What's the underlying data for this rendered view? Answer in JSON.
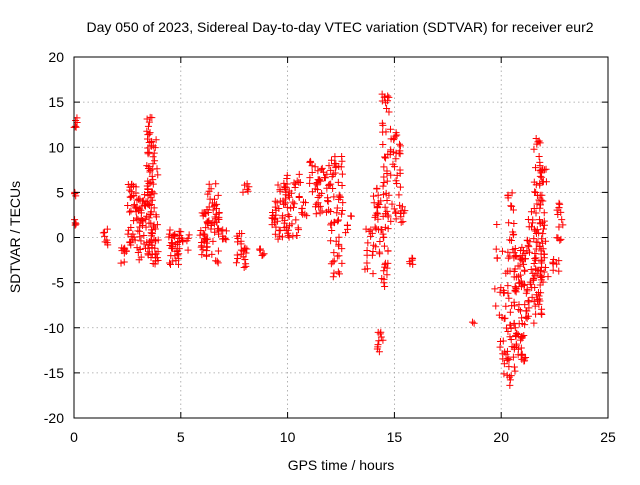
{
  "chart_data": {
    "type": "scatter",
    "title": "Day 050 of 2023, Sidereal Day-to-day VTEC variation (SDTVAR) for receiver eur2",
    "xlabel": "GPS time / hours",
    "ylabel": "SDTVAR / TECUs",
    "xlim": [
      0,
      25
    ],
    "ylim": [
      -20,
      20
    ],
    "xticks": [
      0,
      5,
      10,
      15,
      20,
      25
    ],
    "yticks": [
      -20,
      -15,
      -10,
      -5,
      0,
      5,
      10,
      15,
      20
    ],
    "grid": true,
    "marker": "+",
    "color": "#ff0000",
    "segments": [
      {
        "x0": 0.0,
        "x1": 0.1,
        "lo": 1.0,
        "hi": 2.0,
        "n": 4
      },
      {
        "x0": 0.0,
        "x1": 0.1,
        "lo": 4.5,
        "hi": 5.3,
        "n": 4
      },
      {
        "x0": 0.0,
        "x1": 0.15,
        "lo": 12.0,
        "hi": 13.5,
        "n": 6
      },
      {
        "x0": 1.35,
        "x1": 1.6,
        "lo": -1.0,
        "hi": 1.0,
        "n": 8
      },
      {
        "x0": 2.2,
        "x1": 2.6,
        "lo": -3.0,
        "hi": -1.0,
        "n": 10
      },
      {
        "x0": 2.5,
        "x1": 3.0,
        "lo": -2.0,
        "hi": 6.0,
        "n": 40
      },
      {
        "x0": 3.0,
        "x1": 3.4,
        "lo": -2.5,
        "hi": 5.0,
        "n": 35
      },
      {
        "x0": 3.4,
        "x1": 3.7,
        "lo": -2.0,
        "hi": 13.5,
        "n": 60
      },
      {
        "x0": 3.6,
        "x1": 3.95,
        "lo": -3.0,
        "hi": 11.0,
        "n": 45
      },
      {
        "x0": 4.4,
        "x1": 5.0,
        "lo": -3.0,
        "hi": 1.0,
        "n": 35
      },
      {
        "x0": 5.0,
        "x1": 5.4,
        "lo": -1.5,
        "hi": 0.5,
        "n": 8
      },
      {
        "x0": 5.9,
        "x1": 6.3,
        "lo": -2.5,
        "hi": 3.0,
        "n": 30
      },
      {
        "x0": 6.2,
        "x1": 6.8,
        "lo": -3.0,
        "hi": 6.0,
        "n": 45
      },
      {
        "x0": 6.8,
        "x1": 7.2,
        "lo": -1.0,
        "hi": 1.0,
        "n": 8
      },
      {
        "x0": 7.6,
        "x1": 8.1,
        "lo": -3.5,
        "hi": 0.5,
        "n": 22
      },
      {
        "x0": 7.9,
        "x1": 8.2,
        "lo": 4.5,
        "hi": 6.0,
        "n": 6
      },
      {
        "x0": 8.6,
        "x1": 8.9,
        "lo": -2.0,
        "hi": -1.0,
        "n": 6
      },
      {
        "x0": 9.2,
        "x1": 9.9,
        "lo": -0.5,
        "hi": 6.5,
        "n": 40
      },
      {
        "x0": 9.9,
        "x1": 10.6,
        "lo": 0.0,
        "hi": 7.0,
        "n": 40
      },
      {
        "x0": 10.6,
        "x1": 10.9,
        "lo": 2.0,
        "hi": 4.0,
        "n": 8
      },
      {
        "x0": 11.0,
        "x1": 11.3,
        "lo": 5.0,
        "hi": 8.5,
        "n": 10
      },
      {
        "x0": 11.3,
        "x1": 12.0,
        "lo": 2.5,
        "hi": 8.0,
        "n": 35
      },
      {
        "x0": 12.0,
        "x1": 12.6,
        "lo": -4.5,
        "hi": 9.5,
        "n": 55
      },
      {
        "x0": 12.7,
        "x1": 13.0,
        "lo": 0.5,
        "hi": 2.5,
        "n": 6
      },
      {
        "x0": 13.6,
        "x1": 14.0,
        "lo": -4.0,
        "hi": 1.0,
        "n": 14
      },
      {
        "x0": 14.0,
        "x1": 14.4,
        "lo": -2.0,
        "hi": 6.0,
        "n": 25
      },
      {
        "x0": 14.2,
        "x1": 14.5,
        "lo": -13.0,
        "hi": -10.5,
        "n": 10
      },
      {
        "x0": 14.4,
        "x1": 14.75,
        "lo": -5.5,
        "hi": 16.5,
        "n": 55
      },
      {
        "x0": 14.8,
        "x1": 15.3,
        "lo": 1.5,
        "hi": 12.0,
        "n": 35
      },
      {
        "x0": 15.2,
        "x1": 15.5,
        "lo": 1.5,
        "hi": 3.5,
        "n": 8
      },
      {
        "x0": 15.6,
        "x1": 15.9,
        "lo": -3.0,
        "hi": -2.0,
        "n": 6
      },
      {
        "x0": 18.6,
        "x1": 18.8,
        "lo": -9.5,
        "hi": -9.2,
        "n": 2
      },
      {
        "x0": 19.7,
        "x1": 19.9,
        "lo": -8.0,
        "hi": 2.0,
        "n": 6
      },
      {
        "x0": 19.9,
        "x1": 20.3,
        "lo": -17.0,
        "hi": -1.5,
        "n": 25
      },
      {
        "x0": 20.3,
        "x1": 20.7,
        "lo": -16.5,
        "hi": 5.0,
        "n": 55
      },
      {
        "x0": 20.6,
        "x1": 21.2,
        "lo": -14.0,
        "hi": -1.0,
        "n": 70
      },
      {
        "x0": 21.2,
        "x1": 21.6,
        "lo": -9.0,
        "hi": 3.0,
        "n": 35
      },
      {
        "x0": 21.5,
        "x1": 21.9,
        "lo": -9.5,
        "hi": 11.0,
        "n": 65
      },
      {
        "x0": 21.8,
        "x1": 22.2,
        "lo": -5.0,
        "hi": 8.0,
        "n": 40
      },
      {
        "x0": 22.4,
        "x1": 22.7,
        "lo": -4.0,
        "hi": -2.0,
        "n": 8
      },
      {
        "x0": 22.6,
        "x1": 22.9,
        "lo": -0.5,
        "hi": 4.0,
        "n": 14
      }
    ]
  }
}
